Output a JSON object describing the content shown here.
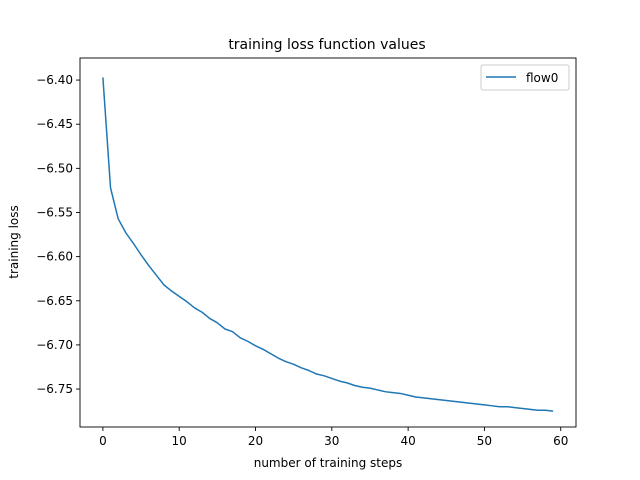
{
  "chart_data": {
    "type": "line",
    "title": "training loss function values",
    "xlabel": "number of training steps",
    "ylabel": "training loss",
    "xlim": [
      -3,
      62
    ],
    "ylim": [
      -6.793,
      -6.375
    ],
    "xticks": [
      0,
      10,
      20,
      30,
      40,
      50,
      60
    ],
    "xtick_labels": [
      "0",
      "10",
      "20",
      "30",
      "40",
      "50",
      "60"
    ],
    "yticks": [
      -6.4,
      -6.45,
      -6.5,
      -6.55,
      -6.6,
      -6.65,
      -6.7,
      -6.75
    ],
    "ytick_labels": [
      "−6.40",
      "−6.45",
      "−6.50",
      "−6.55",
      "−6.60",
      "−6.65",
      "−6.70",
      "−6.75"
    ],
    "grid": false,
    "legend_position": "upper right",
    "series": [
      {
        "name": "flow0",
        "color": "#1f77b4",
        "x": [
          0,
          1,
          2,
          3,
          4,
          5,
          6,
          7,
          8,
          9,
          10,
          11,
          12,
          13,
          14,
          15,
          16,
          17,
          18,
          19,
          20,
          21,
          22,
          23,
          24,
          25,
          26,
          27,
          28,
          29,
          30,
          31,
          32,
          33,
          34,
          35,
          36,
          37,
          38,
          39,
          40,
          41,
          42,
          43,
          44,
          45,
          46,
          47,
          48,
          49,
          50,
          51,
          52,
          53,
          54,
          55,
          56,
          57,
          58,
          59
        ],
        "y": [
          -6.397,
          -6.522,
          -6.557,
          -6.573,
          -6.585,
          -6.598,
          -6.61,
          -6.621,
          -6.632,
          -6.639,
          -6.645,
          -6.651,
          -6.658,
          -6.663,
          -6.67,
          -6.675,
          -6.682,
          -6.685,
          -6.692,
          -6.696,
          -6.701,
          -6.705,
          -6.71,
          -6.715,
          -6.719,
          -6.722,
          -6.726,
          -6.729,
          -6.733,
          -6.735,
          -6.738,
          -6.741,
          -6.743,
          -6.746,
          -6.748,
          -6.749,
          -6.751,
          -6.753,
          -6.754,
          -6.755,
          -6.757,
          -6.759,
          -6.76,
          -6.761,
          -6.762,
          -6.763,
          -6.764,
          -6.765,
          -6.766,
          -6.767,
          -6.768,
          -6.769,
          -6.77,
          -6.77,
          -6.771,
          -6.772,
          -6.773,
          -6.774,
          -6.774,
          -6.775
        ]
      }
    ]
  }
}
